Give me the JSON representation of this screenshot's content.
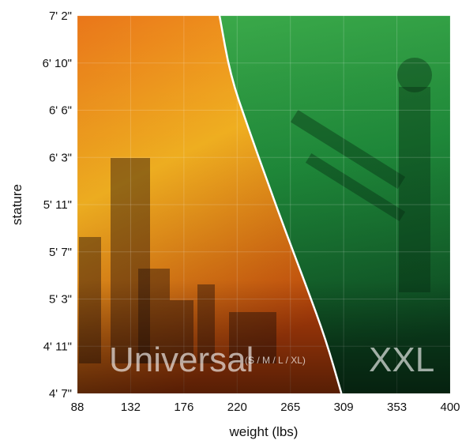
{
  "chart_data": {
    "type": "area",
    "xlabel": "weight (lbs)",
    "ylabel": "stature",
    "x_ticks": [
      "88",
      "132",
      "176",
      "220",
      "265",
      "309",
      "353",
      "400"
    ],
    "y_ticks": [
      "4' 7\"",
      "4' 11\"",
      "5' 3\"",
      "5' 7\"",
      "5' 11\"",
      "6' 3\"",
      "6' 6\"",
      "6' 10\"",
      "7' 2\""
    ],
    "xlim": [
      88,
      400
    ],
    "ylim_inches": [
      55,
      86
    ],
    "grid": true,
    "regions": [
      {
        "name": "Universal",
        "sublabel": "(S / M / L / XL)",
        "color": "#e8880e"
      },
      {
        "name": "XXL",
        "sublabel": "",
        "color": "#1f8a3a"
      }
    ],
    "boundary": {
      "x": [
        309,
        296,
        280,
        263,
        247,
        231,
        216,
        207
      ],
      "y": [
        55,
        59.4,
        63.7,
        68.1,
        72.4,
        76.8,
        81.1,
        86
      ]
    },
    "colors": {
      "universal_light": "#f4b221",
      "universal_dark": "#c1430b",
      "xxl_light": "#3fae4c",
      "xxl_dark": "#0d4a22",
      "boundary": "#ffffff"
    }
  }
}
